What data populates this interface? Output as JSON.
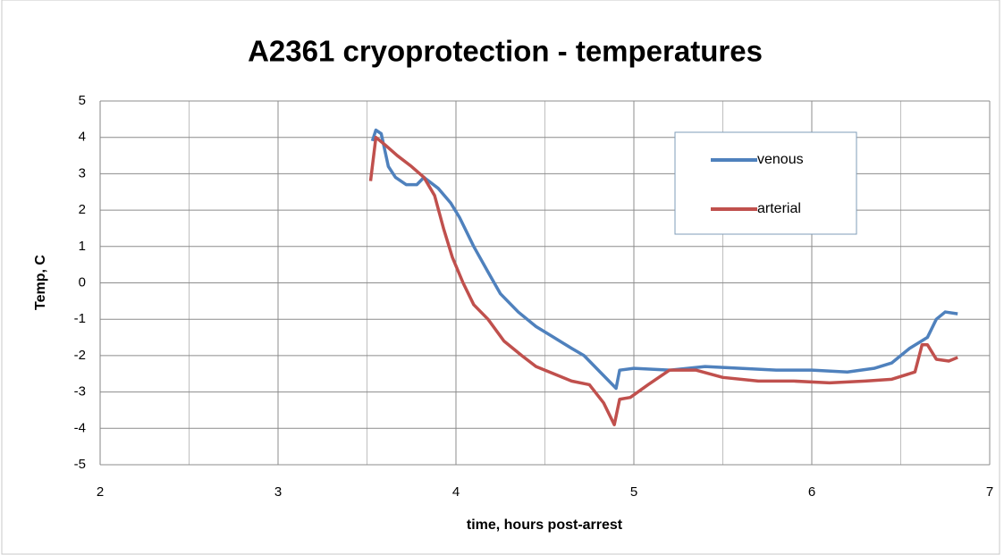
{
  "chart_data": {
    "type": "line",
    "title": "A2361 cryoprotection - temperatures",
    "x_label": "time, hours post-arrest",
    "y_label": "Temp, C",
    "xlim": [
      2,
      7
    ],
    "xticks": [
      2,
      3,
      4,
      5,
      6,
      7
    ],
    "xminorticks": [
      2.5,
      3.5,
      4.5,
      5.5,
      6.5
    ],
    "ylim": [
      -5,
      5
    ],
    "yticks": [
      -5,
      -4,
      -3,
      -2,
      -1,
      0,
      1,
      2,
      3,
      4,
      5
    ],
    "grid": true,
    "legend": "upper right",
    "series": [
      {
        "name": "venous",
        "color": "#4f81bd",
        "x": [
          3.53,
          3.55,
          3.58,
          3.62,
          3.66,
          3.72,
          3.78,
          3.82,
          3.9,
          3.97,
          4.02,
          4.1,
          4.18,
          4.25,
          4.35,
          4.45,
          4.55,
          4.65,
          4.72,
          4.82,
          4.9,
          4.92,
          5.0,
          5.2,
          5.4,
          5.6,
          5.8,
          6.0,
          6.2,
          6.35,
          6.45,
          6.55,
          6.65,
          6.7,
          6.75,
          6.82
        ],
        "values": [
          3.9,
          4.2,
          4.1,
          3.2,
          2.9,
          2.7,
          2.7,
          2.9,
          2.6,
          2.2,
          1.8,
          1.0,
          0.3,
          -0.3,
          -0.8,
          -1.2,
          -1.5,
          -1.8,
          -2.0,
          -2.5,
          -2.9,
          -2.4,
          -2.35,
          -2.4,
          -2.3,
          -2.35,
          -2.4,
          -2.4,
          -2.45,
          -2.35,
          -2.2,
          -1.8,
          -1.5,
          -1.0,
          -0.8,
          -0.85
        ]
      },
      {
        "name": "arterial",
        "color": "#c0504d",
        "x": [
          3.52,
          3.55,
          3.6,
          3.67,
          3.75,
          3.82,
          3.88,
          3.93,
          3.98,
          4.04,
          4.1,
          4.18,
          4.27,
          4.37,
          4.45,
          4.55,
          4.65,
          4.75,
          4.83,
          4.89,
          4.92,
          4.98,
          5.08,
          5.2,
          5.35,
          5.5,
          5.7,
          5.9,
          6.1,
          6.3,
          6.45,
          6.58,
          6.62,
          6.65,
          6.7,
          6.77,
          6.82
        ],
        "values": [
          2.8,
          4.0,
          3.8,
          3.5,
          3.2,
          2.9,
          2.4,
          1.5,
          0.7,
          0.0,
          -0.6,
          -1.0,
          -1.6,
          -2.0,
          -2.3,
          -2.5,
          -2.7,
          -2.8,
          -3.3,
          -3.9,
          -3.2,
          -3.15,
          -2.8,
          -2.4,
          -2.4,
          -2.6,
          -2.7,
          -2.7,
          -2.75,
          -2.7,
          -2.65,
          -2.45,
          -1.7,
          -1.7,
          -2.1,
          -2.15,
          -2.05
        ]
      }
    ]
  }
}
